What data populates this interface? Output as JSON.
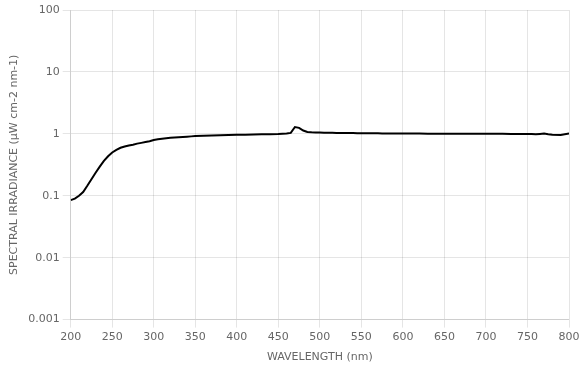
{
  "chart_data": {
    "type": "line",
    "xlabel": "WAVELENGTH (nm)",
    "ylabel": "SPECTRAL IRRADIANCE (μW cm-2 nm-1)",
    "x": [
      200,
      205,
      210,
      215,
      220,
      225,
      230,
      235,
      240,
      245,
      250,
      255,
      260,
      265,
      270,
      275,
      280,
      285,
      290,
      295,
      300,
      305,
      310,
      315,
      320,
      325,
      330,
      335,
      340,
      345,
      350,
      360,
      370,
      380,
      390,
      400,
      410,
      420,
      430,
      440,
      450,
      460,
      465,
      470,
      475,
      480,
      485,
      490,
      495,
      500,
      505,
      510,
      515,
      520,
      525,
      530,
      535,
      540,
      545,
      550,
      555,
      560,
      565,
      570,
      575,
      580,
      585,
      590,
      595,
      600,
      610,
      620,
      630,
      640,
      650,
      660,
      670,
      680,
      690,
      700,
      710,
      720,
      730,
      740,
      750,
      755,
      760,
      765,
      770,
      775,
      780,
      790,
      800
    ],
    "values": [
      0.085,
      0.09,
      0.1,
      0.115,
      0.145,
      0.185,
      0.235,
      0.295,
      0.365,
      0.435,
      0.5,
      0.55,
      0.595,
      0.625,
      0.65,
      0.668,
      0.695,
      0.715,
      0.738,
      0.76,
      0.795,
      0.815,
      0.835,
      0.85,
      0.862,
      0.872,
      0.882,
      0.892,
      0.9,
      0.91,
      0.92,
      0.932,
      0.942,
      0.95,
      0.958,
      0.965,
      0.97,
      0.975,
      0.982,
      0.988,
      0.995,
      1.01,
      1.035,
      1.29,
      1.25,
      1.13,
      1.075,
      1.06,
      1.05,
      1.048,
      1.043,
      1.04,
      1.038,
      1.035,
      1.033,
      1.03,
      1.028,
      1.027,
      1.025,
      1.023,
      1.022,
      1.02,
      1.02,
      1.018,
      1.017,
      1.015,
      1.015,
      1.013,
      1.013,
      1.012,
      1.01,
      1.01,
      1.008,
      1.008,
      1.007,
      1.005,
      1.005,
      1.003,
      1.003,
      1.002,
      1.0,
      1.0,
      0.998,
      0.998,
      0.997,
      0.998,
      0.985,
      0.997,
      1.01,
      0.985,
      0.97,
      0.96,
      1.01
    ],
    "color": "#000000",
    "xlim": [
      200,
      800
    ],
    "xticks": [
      200,
      250,
      300,
      350,
      400,
      450,
      500,
      550,
      600,
      650,
      700,
      750,
      800
    ],
    "ylim": [
      0.001,
      100
    ],
    "yticks": [
      0.001,
      0.01,
      0.1,
      1,
      10,
      100
    ],
    "log": "y",
    "grid": true
  }
}
